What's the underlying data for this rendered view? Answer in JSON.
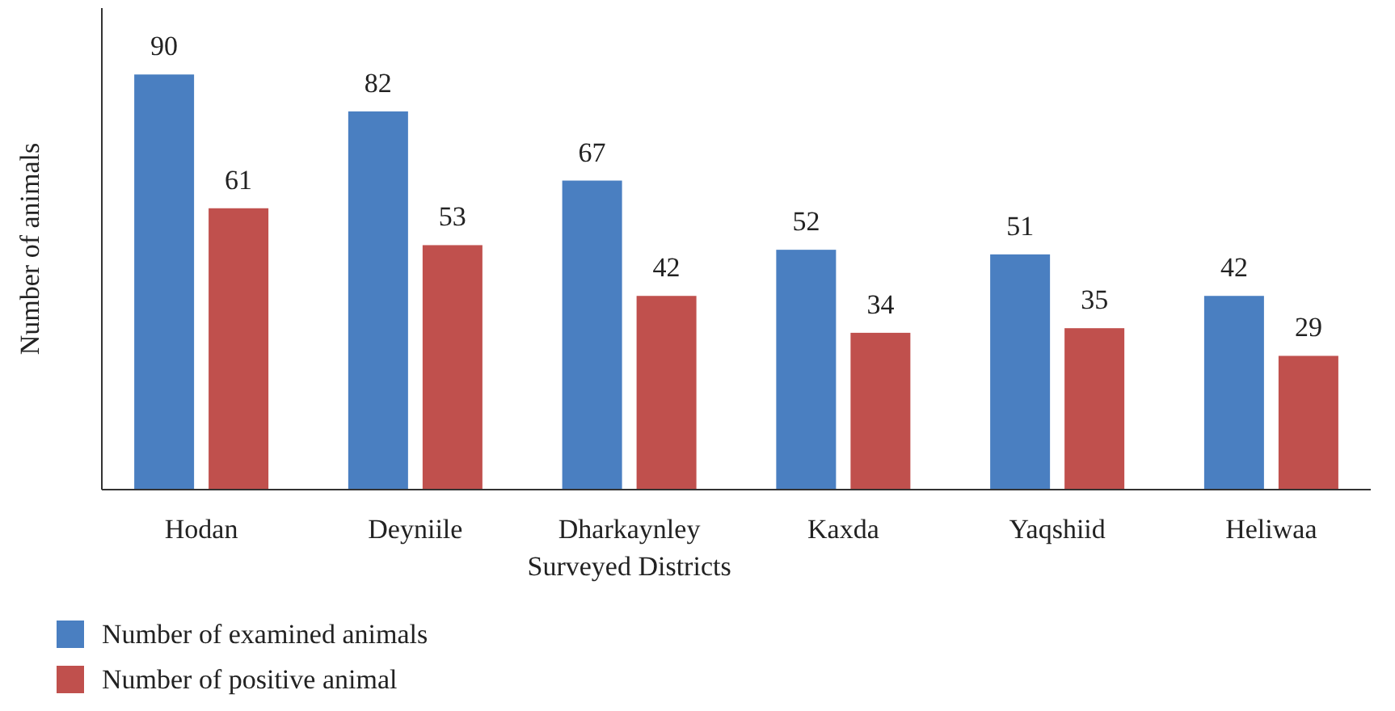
{
  "chart_data": {
    "type": "bar",
    "xlabel": "Surveyed Districts",
    "ylabel": "Number of animals",
    "categories": [
      "Hodan",
      "Deyniile",
      "Dharkaynley",
      "Kaxda",
      "Yaqshiid",
      "Heliwaa"
    ],
    "series": [
      {
        "name": "Number of examined animals",
        "color": "#4a7fc1",
        "values": [
          90,
          82,
          67,
          52,
          51,
          42
        ]
      },
      {
        "name": "Number of positive animal",
        "color": "#c0504d",
        "values": [
          61,
          53,
          42,
          34,
          35,
          29
        ]
      }
    ],
    "data_labels": true,
    "legend": "bottom",
    "grid": false
  }
}
